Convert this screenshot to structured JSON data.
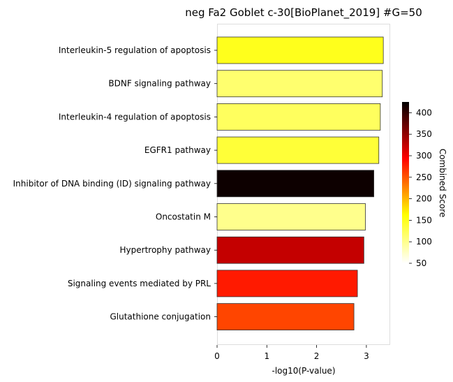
{
  "chart_data": {
    "type": "bar",
    "orientation": "horizontal",
    "title": "neg Fa2 Goblet c-30[BioPlanet_2019] #G=50",
    "xlabel": "-log10(P-value)",
    "ylabel": "",
    "xlim": [
      0,
      3.5
    ],
    "xticks": [
      "0",
      "1",
      "2",
      "3"
    ],
    "grid": false,
    "categories": [
      "Interleukin-5 regulation of apoptosis",
      "BDNF signaling pathway",
      "Interleukin-4 regulation of apoptosis",
      "EGFR1 pathway",
      "Inhibitor of DNA binding (ID) signaling pathway",
      "Oncostatin M",
      "Hypertrophy pathway",
      "Signaling events mediated by PRL",
      "Glutathione conjugation"
    ],
    "values": [
      3.34,
      3.32,
      3.28,
      3.25,
      3.15,
      2.98,
      2.95,
      2.82,
      2.75
    ],
    "bar_colors": [
      "#ffff1c",
      "#ffff6e",
      "#ffff5e",
      "#ffff38",
      "#0d0000",
      "#ffff8c",
      "#c40000",
      "#ff1a00",
      "#ff4500"
    ],
    "colorbar": {
      "label": "Combined Score",
      "min": 50,
      "max": 425,
      "ticks": [
        "50",
        "100",
        "150",
        "200",
        "250",
        "300",
        "350",
        "400"
      ],
      "colormap": "hot_r"
    }
  }
}
